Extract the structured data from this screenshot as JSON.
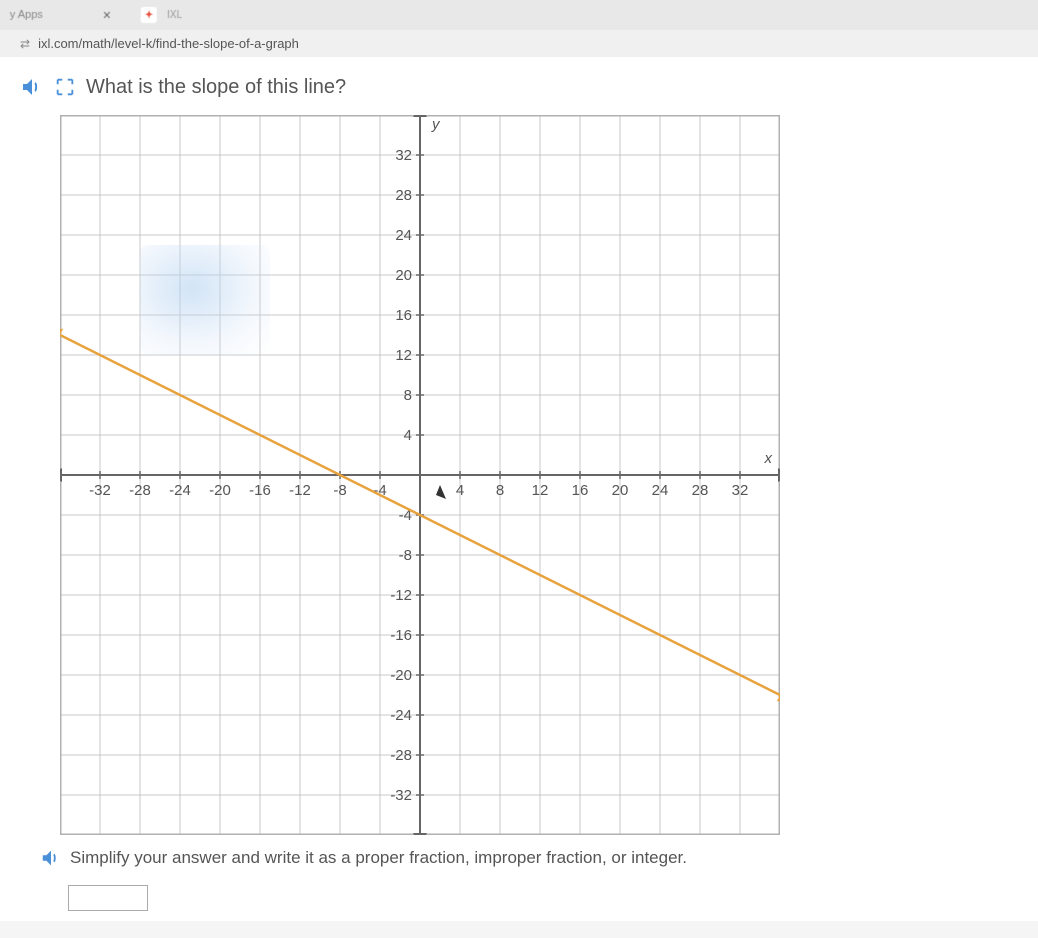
{
  "browser": {
    "apps_label": "y Apps",
    "tab_close": "×",
    "ixl_hint": "IXL",
    "url": "ixl.com/math/level-k/find-the-slope-of-a-graph"
  },
  "question": "What is the slope of this line?",
  "instruction": "Simplify your answer and write it as a proper fraction, improper fraction, or integer.",
  "chart": {
    "type": "line",
    "x_axis_label": "x",
    "y_axis_label": "y",
    "xlim": [
      -36,
      36
    ],
    "ylim": [
      -36,
      36
    ],
    "major_step": 4,
    "x_ticks": [
      -32,
      -28,
      -24,
      -20,
      -16,
      -12,
      -8,
      -4,
      4,
      8,
      12,
      16,
      20,
      24,
      28,
      32
    ],
    "y_ticks": [
      -32,
      -28,
      -24,
      -20,
      -16,
      -12,
      -8,
      -4,
      4,
      8,
      12,
      16,
      20,
      24,
      28,
      32
    ],
    "line_points": [
      [
        -36,
        14
      ],
      [
        36,
        -22
      ]
    ],
    "line_color": "#e8a23c",
    "grid_color": "#c8c8c8",
    "axis_color": "#666666",
    "background_color": "#ffffff",
    "arrow_color": "#666666",
    "line_arrow_color": "#e8a23c"
  }
}
